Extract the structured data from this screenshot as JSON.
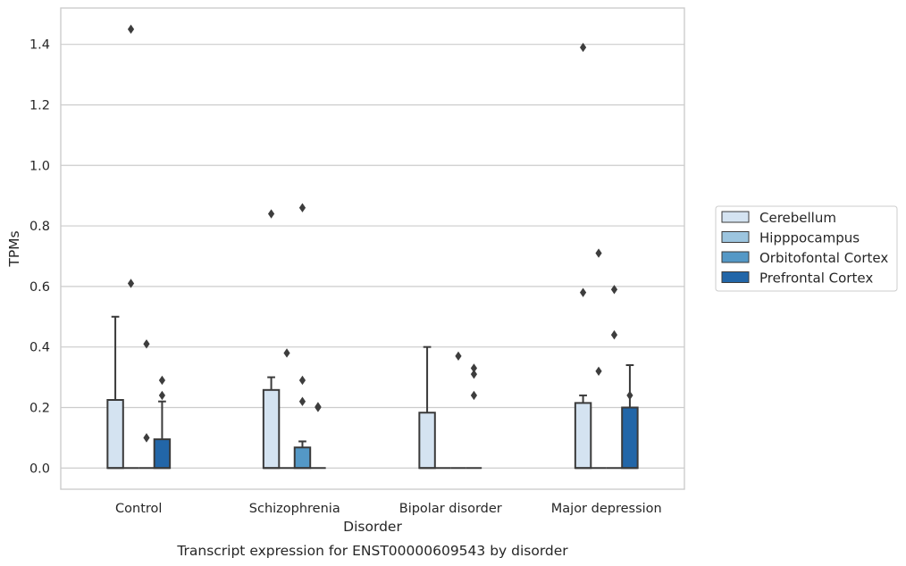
{
  "chart_data": {
    "type": "box",
    "caption": "Transcript expression for ENST00000609543 by disorder",
    "xlabel": "Disorder",
    "ylabel": "TPMs",
    "categories": [
      "Control",
      "Schizophrenia",
      "Bipolar disorder",
      "Major depression"
    ],
    "ylim": [
      -0.07,
      1.52
    ],
    "yticks": [
      0.0,
      0.2,
      0.4,
      0.6,
      0.8,
      1.0,
      1.2,
      1.4
    ],
    "ytick_labels": [
      "0.0",
      "0.2",
      "0.4",
      "0.6",
      "0.8",
      "1.0",
      "1.2",
      "1.4"
    ],
    "grid": true,
    "legend_position": "right",
    "colors": {
      "Cerebellum": "#d4e3f1",
      "Hipppocampus": "#9cc5df",
      "Orbitofontal Cortex": "#5498c6",
      "Prefrontal Cortex": "#2266a8",
      "edge": "#3a3a3a",
      "grid": "#cccccc",
      "frame": "#cccccc"
    },
    "series": [
      {
        "name": "Cerebellum",
        "boxes": [
          {
            "q1": 0.0,
            "median": 0.0,
            "q3": 0.225,
            "whisker_low": 0.0,
            "whisker_high": 0.5,
            "outliers": []
          },
          {
            "q1": 0.0,
            "median": 0.0,
            "q3": 0.258,
            "whisker_low": 0.0,
            "whisker_high": 0.3,
            "outliers": [
              0.84
            ]
          },
          {
            "q1": 0.0,
            "median": 0.0,
            "q3": 0.183,
            "whisker_low": 0.0,
            "whisker_high": 0.4,
            "outliers": []
          },
          {
            "q1": 0.0,
            "median": 0.0,
            "q3": 0.215,
            "whisker_low": 0.0,
            "whisker_high": 0.24,
            "outliers": [
              0.58,
              1.39
            ]
          }
        ]
      },
      {
        "name": "Hipppocampus",
        "boxes": [
          {
            "q1": 0.0,
            "median": 0.0,
            "q3": 0.0,
            "whisker_low": 0.0,
            "whisker_high": 0.0,
            "outliers": [
              0.61,
              1.45
            ]
          },
          {
            "q1": 0.0,
            "median": 0.0,
            "q3": 0.0,
            "whisker_low": 0.0,
            "whisker_high": 0.0,
            "outliers": [
              0.38
            ]
          },
          {
            "q1": 0.0,
            "median": 0.0,
            "q3": 0.0,
            "whisker_low": 0.0,
            "whisker_high": 0.0,
            "outliers": []
          },
          {
            "q1": 0.0,
            "median": 0.0,
            "q3": 0.0,
            "whisker_low": 0.0,
            "whisker_high": 0.0,
            "outliers": [
              0.32,
              0.71
            ]
          }
        ]
      },
      {
        "name": "Orbitofontal Cortex",
        "boxes": [
          {
            "q1": 0.0,
            "median": 0.0,
            "q3": 0.0,
            "whisker_low": 0.0,
            "whisker_high": 0.0,
            "outliers": [
              0.1,
              0.41
            ]
          },
          {
            "q1": 0.0,
            "median": 0.0,
            "q3": 0.068,
            "whisker_low": 0.0,
            "whisker_high": 0.088,
            "outliers": [
              0.22,
              0.29,
              0.86
            ]
          },
          {
            "q1": 0.0,
            "median": 0.0,
            "q3": 0.0,
            "whisker_low": 0.0,
            "whisker_high": 0.0,
            "outliers": [
              0.37
            ]
          },
          {
            "q1": 0.0,
            "median": 0.0,
            "q3": 0.0,
            "whisker_low": 0.0,
            "whisker_high": 0.0,
            "outliers": [
              0.44,
              0.59
            ]
          }
        ]
      },
      {
        "name": "Prefrontal Cortex",
        "boxes": [
          {
            "q1": 0.0,
            "median": 0.0,
            "q3": 0.095,
            "whisker_low": 0.0,
            "whisker_high": 0.22,
            "outliers": [
              0.24,
              0.29
            ]
          },
          {
            "q1": 0.0,
            "median": 0.0,
            "q3": 0.0,
            "whisker_low": 0.0,
            "whisker_high": 0.0,
            "outliers": [
              0.2,
              0.203
            ]
          },
          {
            "q1": 0.0,
            "median": 0.0,
            "q3": 0.0,
            "whisker_low": 0.0,
            "whisker_high": 0.0,
            "outliers": [
              0.24,
              0.31,
              0.33
            ]
          },
          {
            "q1": 0.0,
            "median": 0.0,
            "q3": 0.2,
            "whisker_low": 0.0,
            "whisker_high": 0.34,
            "outliers": [
              0.24
            ]
          }
        ]
      }
    ]
  }
}
